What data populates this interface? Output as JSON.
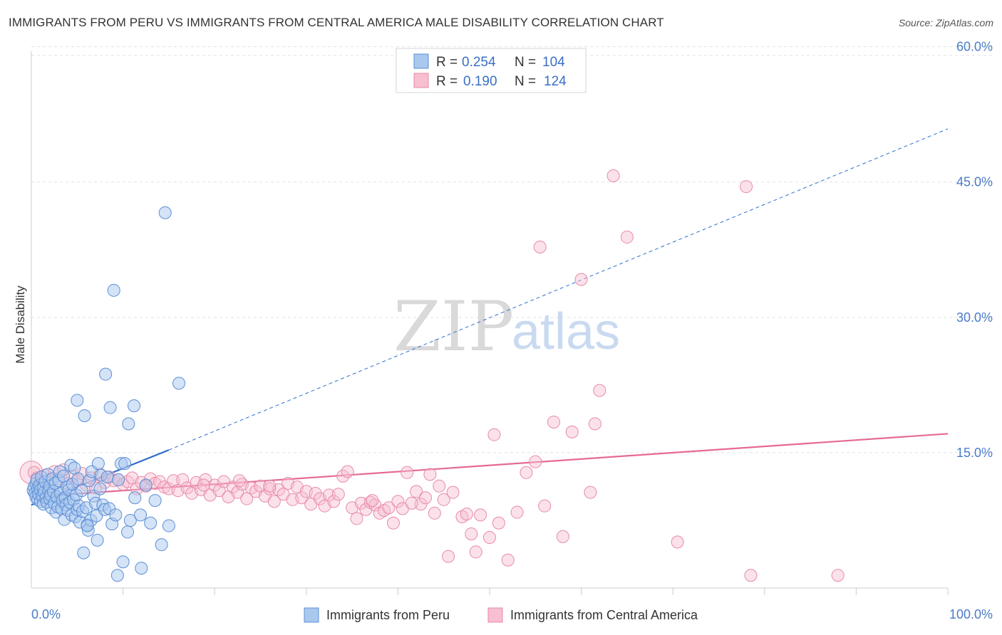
{
  "header": {
    "title": "IMMIGRANTS FROM PERU VS IMMIGRANTS FROM CENTRAL AMERICA MALE DISABILITY CORRELATION CHART",
    "source": "Source: ZipAtlas.com"
  },
  "legend_top": {
    "rows": [
      {
        "r_label": "R =",
        "r_value": "0.254",
        "n_label": "N =",
        "n_value": "104"
      },
      {
        "r_label": "R =",
        "r_value": "0.190",
        "n_label": "N =",
        "n_value": "124"
      }
    ]
  },
  "legend_bottom": {
    "items": [
      "Immigrants from Peru",
      "Immigrants from Central America"
    ]
  },
  "watermark": {
    "zip": "ZIP",
    "atlas": "atlas"
  },
  "colors": {
    "peru_fill": "#a9c8ee",
    "peru_stroke": "#5b8fd6",
    "peru_line": "#2f6fd0",
    "ca_fill": "#f7bfd0",
    "ca_stroke": "#e88aa8",
    "ca_line": "#e56a93",
    "tick": "#4a7cc8",
    "grid": "#e2e2e2"
  },
  "chart_data": {
    "type": "scatter",
    "title": "IMMIGRANTS FROM PERU VS IMMIGRANTS FROM CENTRAL AMERICA MALE DISABILITY CORRELATION CHART",
    "xlabel": "",
    "ylabel": "Male Disability",
    "xlim": [
      0,
      100
    ],
    "ylim": [
      0,
      59.5
    ],
    "x_tick_labels": [
      "0.0%",
      "100.0%"
    ],
    "y_ticks": [
      15,
      30,
      45,
      60
    ],
    "y_tick_labels": [
      "15.0%",
      "30.0%",
      "45.0%",
      "60.0%"
    ],
    "grid": true,
    "legend_position": "top-center",
    "series": [
      {
        "name": "Immigrants from Peru",
        "r": 0.254,
        "n": 104,
        "trend": {
          "x0": 0,
          "y0": 9.2,
          "x1": 15,
          "y1": 15.3,
          "dashed_to_x": 100,
          "dashed_to_y": 50.9
        },
        "points": [
          [
            0.2,
            10.8
          ],
          [
            0.3,
            11.2
          ],
          [
            0.4,
            10.5
          ],
          [
            0.5,
            11.6
          ],
          [
            0.5,
            10.1
          ],
          [
            0.6,
            12.0
          ],
          [
            0.7,
            9.8
          ],
          [
            0.7,
            11.0
          ],
          [
            0.8,
            10.4
          ],
          [
            0.9,
            11.4
          ],
          [
            1.0,
            10.9
          ],
          [
            1.0,
            9.6
          ],
          [
            1.1,
            12.3
          ],
          [
            1.2,
            10.2
          ],
          [
            1.3,
            11.1
          ],
          [
            1.3,
            9.3
          ],
          [
            1.4,
            10.6
          ],
          [
            1.5,
            11.8
          ],
          [
            1.6,
            10.0
          ],
          [
            1.7,
            9.5
          ],
          [
            1.8,
            12.6
          ],
          [
            1.9,
            10.8
          ],
          [
            2.0,
            9.9
          ],
          [
            2.0,
            11.3
          ],
          [
            2.1,
            10.3
          ],
          [
            2.2,
            8.9
          ],
          [
            2.3,
            12.1
          ],
          [
            2.4,
            10.7
          ],
          [
            2.5,
            9.4
          ],
          [
            2.6,
            11.6
          ],
          [
            2.7,
            8.4
          ],
          [
            2.8,
            10.1
          ],
          [
            2.9,
            9.0
          ],
          [
            3.0,
            11.9
          ],
          [
            3.1,
            12.9
          ],
          [
            3.2,
            10.5
          ],
          [
            3.3,
            8.8
          ],
          [
            3.4,
            9.7
          ],
          [
            3.5,
            12.4
          ],
          [
            3.6,
            7.6
          ],
          [
            3.7,
            10.0
          ],
          [
            3.8,
            9.2
          ],
          [
            3.9,
            11.2
          ],
          [
            4.0,
            8.6
          ],
          [
            4.1,
            10.9
          ],
          [
            4.2,
            9.5
          ],
          [
            4.3,
            13.6
          ],
          [
            4.4,
            8.1
          ],
          [
            4.5,
            11.5
          ],
          [
            4.6,
            9.8
          ],
          [
            4.7,
            13.3
          ],
          [
            4.8,
            7.9
          ],
          [
            4.9,
            10.3
          ],
          [
            5.0,
            8.7
          ],
          [
            5.1,
            12.1
          ],
          [
            5.2,
            9.1
          ],
          [
            5.3,
            7.3
          ],
          [
            5.5,
            10.8
          ],
          [
            5.6,
            8.5
          ],
          [
            5.7,
            3.9
          ],
          [
            5.8,
            19.1
          ],
          [
            6.0,
            8.9
          ],
          [
            6.1,
            7.0
          ],
          [
            6.2,
            6.4
          ],
          [
            6.3,
            11.9
          ],
          [
            6.5,
            7.5
          ],
          [
            6.6,
            12.9
          ],
          [
            6.8,
            10.2
          ],
          [
            7.0,
            9.4
          ],
          [
            7.1,
            8.0
          ],
          [
            7.2,
            5.3
          ],
          [
            7.3,
            13.8
          ],
          [
            7.5,
            11.0
          ],
          [
            7.6,
            12.5
          ],
          [
            7.8,
            9.2
          ],
          [
            8.0,
            8.7
          ],
          [
            8.1,
            23.7
          ],
          [
            8.3,
            12.3
          ],
          [
            8.5,
            8.8
          ],
          [
            8.6,
            20.0
          ],
          [
            8.8,
            7.1
          ],
          [
            9.0,
            33.0
          ],
          [
            9.2,
            8.1
          ],
          [
            9.5,
            12.0
          ],
          [
            9.8,
            13.8
          ],
          [
            10.0,
            2.9
          ],
          [
            10.2,
            13.8
          ],
          [
            10.5,
            6.2
          ],
          [
            10.6,
            18.2
          ],
          [
            10.8,
            7.5
          ],
          [
            11.2,
            20.2
          ],
          [
            11.3,
            10.0
          ],
          [
            12.0,
            2.2
          ],
          [
            12.5,
            11.4
          ],
          [
            13.0,
            7.2
          ],
          [
            13.5,
            9.7
          ],
          [
            14.2,
            4.8
          ],
          [
            14.6,
            41.6
          ],
          [
            15.0,
            6.9
          ],
          [
            16.1,
            22.7
          ],
          [
            6.1,
            6.9
          ],
          [
            5.0,
            20.8
          ],
          [
            11.9,
            8.1
          ],
          [
            9.4,
            1.4
          ]
        ]
      },
      {
        "name": "Immigrants from Central America",
        "r": 0.19,
        "n": 124,
        "trend": {
          "x0": 0,
          "y0": 10.1,
          "x1": 100,
          "y1": 17.1
        },
        "points": [
          [
            0.3,
            12.8
          ],
          [
            0.6,
            12.2
          ],
          [
            1.0,
            11.8
          ],
          [
            1.5,
            12.5
          ],
          [
            2.0,
            12.0
          ],
          [
            2.5,
            12.9
          ],
          [
            3.0,
            12.1
          ],
          [
            3.5,
            13.1
          ],
          [
            4.0,
            11.6
          ],
          [
            4.5,
            12.4
          ],
          [
            5.0,
            11.9
          ],
          [
            5.5,
            12.7
          ],
          [
            6.0,
            11.4
          ],
          [
            6.5,
            12.2
          ],
          [
            7.0,
            11.1
          ],
          [
            7.5,
            12.6
          ],
          [
            8.0,
            11.7
          ],
          [
            8.5,
            12.3
          ],
          [
            9.0,
            11.9
          ],
          [
            9.5,
            12.0
          ],
          [
            10.0,
            11.5
          ],
          [
            10.5,
            11.8
          ],
          [
            11.0,
            12.2
          ],
          [
            11.5,
            11.0
          ],
          [
            12.0,
            11.7
          ],
          [
            12.5,
            11.3
          ],
          [
            13.0,
            12.1
          ],
          [
            13.5,
            11.6
          ],
          [
            14.0,
            11.8
          ],
          [
            14.5,
            11.2
          ],
          [
            15.0,
            11.0
          ],
          [
            15.5,
            11.9
          ],
          [
            16.0,
            10.8
          ],
          [
            16.5,
            12.0
          ],
          [
            17.0,
            11.1
          ],
          [
            17.5,
            10.5
          ],
          [
            18.0,
            11.7
          ],
          [
            18.5,
            10.9
          ],
          [
            19.0,
            12.0
          ],
          [
            19.5,
            10.3
          ],
          [
            20.0,
            11.4
          ],
          [
            20.5,
            10.8
          ],
          [
            21.0,
            11.8
          ],
          [
            21.5,
            10.1
          ],
          [
            22.0,
            11.2
          ],
          [
            22.5,
            10.6
          ],
          [
            23.0,
            11.5
          ],
          [
            23.5,
            9.9
          ],
          [
            24.0,
            11.1
          ],
          [
            24.5,
            10.7
          ],
          [
            25.0,
            11.3
          ],
          [
            25.5,
            10.2
          ],
          [
            26.0,
            11.0
          ],
          [
            26.5,
            9.6
          ],
          [
            27.0,
            10.9
          ],
          [
            27.5,
            10.4
          ],
          [
            28.0,
            11.6
          ],
          [
            28.5,
            9.8
          ],
          [
            29.0,
            11.2
          ],
          [
            29.5,
            10.0
          ],
          [
            30.0,
            10.7
          ],
          [
            30.5,
            9.3
          ],
          [
            31.0,
            10.5
          ],
          [
            31.5,
            9.9
          ],
          [
            32.0,
            9.1
          ],
          [
            32.5,
            10.3
          ],
          [
            33.0,
            9.6
          ],
          [
            34.0,
            12.4
          ],
          [
            34.5,
            12.9
          ],
          [
            35.0,
            8.9
          ],
          [
            35.5,
            7.7
          ],
          [
            36.0,
            9.4
          ],
          [
            36.5,
            8.7
          ],
          [
            37.0,
            9.5
          ],
          [
            37.5,
            9.2
          ],
          [
            38.0,
            8.3
          ],
          [
            38.5,
            8.6
          ],
          [
            39.0,
            8.9
          ],
          [
            39.5,
            7.2
          ],
          [
            40.0,
            9.6
          ],
          [
            40.5,
            8.8
          ],
          [
            41.0,
            12.8
          ],
          [
            42.0,
            10.7
          ],
          [
            42.5,
            9.3
          ],
          [
            43.0,
            10.0
          ],
          [
            43.5,
            12.6
          ],
          [
            44.0,
            8.3
          ],
          [
            44.5,
            11.3
          ],
          [
            45.0,
            9.8
          ],
          [
            45.5,
            3.5
          ],
          [
            46.0,
            10.6
          ],
          [
            47.0,
            7.9
          ],
          [
            47.5,
            8.2
          ],
          [
            48.0,
            6.0
          ],
          [
            48.5,
            4.0
          ],
          [
            49.0,
            8.1
          ],
          [
            50.0,
            5.6
          ],
          [
            50.5,
            17.0
          ],
          [
            51.0,
            7.2
          ],
          [
            52.0,
            3.1
          ],
          [
            53.0,
            8.4
          ],
          [
            54.0,
            12.8
          ],
          [
            55.0,
            14.0
          ],
          [
            55.5,
            37.8
          ],
          [
            56.0,
            9.1
          ],
          [
            57.0,
            18.4
          ],
          [
            58.0,
            5.7
          ],
          [
            59.0,
            17.3
          ],
          [
            60.0,
            34.2
          ],
          [
            61.0,
            10.6
          ],
          [
            61.5,
            18.2
          ],
          [
            62.0,
            21.9
          ],
          [
            63.5,
            45.7
          ],
          [
            65.0,
            38.9
          ],
          [
            70.5,
            5.1
          ],
          [
            78.0,
            44.5
          ],
          [
            78.5,
            1.4
          ],
          [
            88.0,
            1.4
          ],
          [
            41.5,
            9.4
          ],
          [
            26.0,
            11.3
          ],
          [
            33.5,
            10.4
          ],
          [
            37.2,
            9.7
          ],
          [
            22.7,
            11.9
          ],
          [
            18.8,
            11.4
          ]
        ]
      }
    ]
  }
}
